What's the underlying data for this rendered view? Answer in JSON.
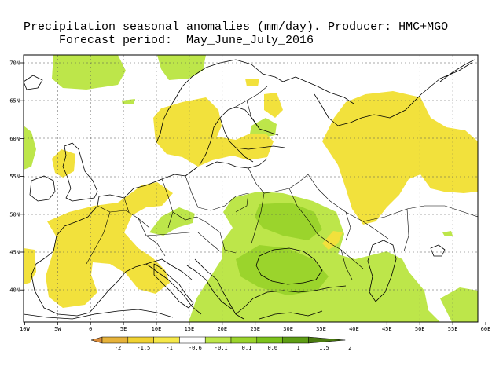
{
  "title": {
    "line1": "Precipitation seasonal anomalies (mm/day). Producer: HMC+MGO",
    "line2": "Forecast period:  May_June_July_2016"
  },
  "lon_labels": [
    "10W",
    "5W",
    "0",
    "5E",
    "10E",
    "15E",
    "20E",
    "25E",
    "30E",
    "35E",
    "40E",
    "45E",
    "50E",
    "55E",
    "60E"
  ],
  "lat_labels": [
    "70N",
    "65N",
    "60N",
    "55N",
    "50N",
    "45N",
    "40N"
  ],
  "colorbar": {
    "labels": [
      "-2",
      "-1.5",
      "-1",
      "-0.6",
      "-0.1",
      "0.1",
      "0.6",
      "1",
      "1.5",
      "2"
    ],
    "colors": [
      "#d98c3c",
      "#e6b23a",
      "#f0d232",
      "#f5e84a",
      "#ffffff",
      "#bde64a",
      "#9bd42c",
      "#7cc21c",
      "#5e9e14",
      "#4a7a10"
    ]
  },
  "anomaly_colors": {
    "dry_light": "#f2e13c",
    "wet_light": "#bde64a",
    "wet_medium": "#9bd42c"
  }
}
